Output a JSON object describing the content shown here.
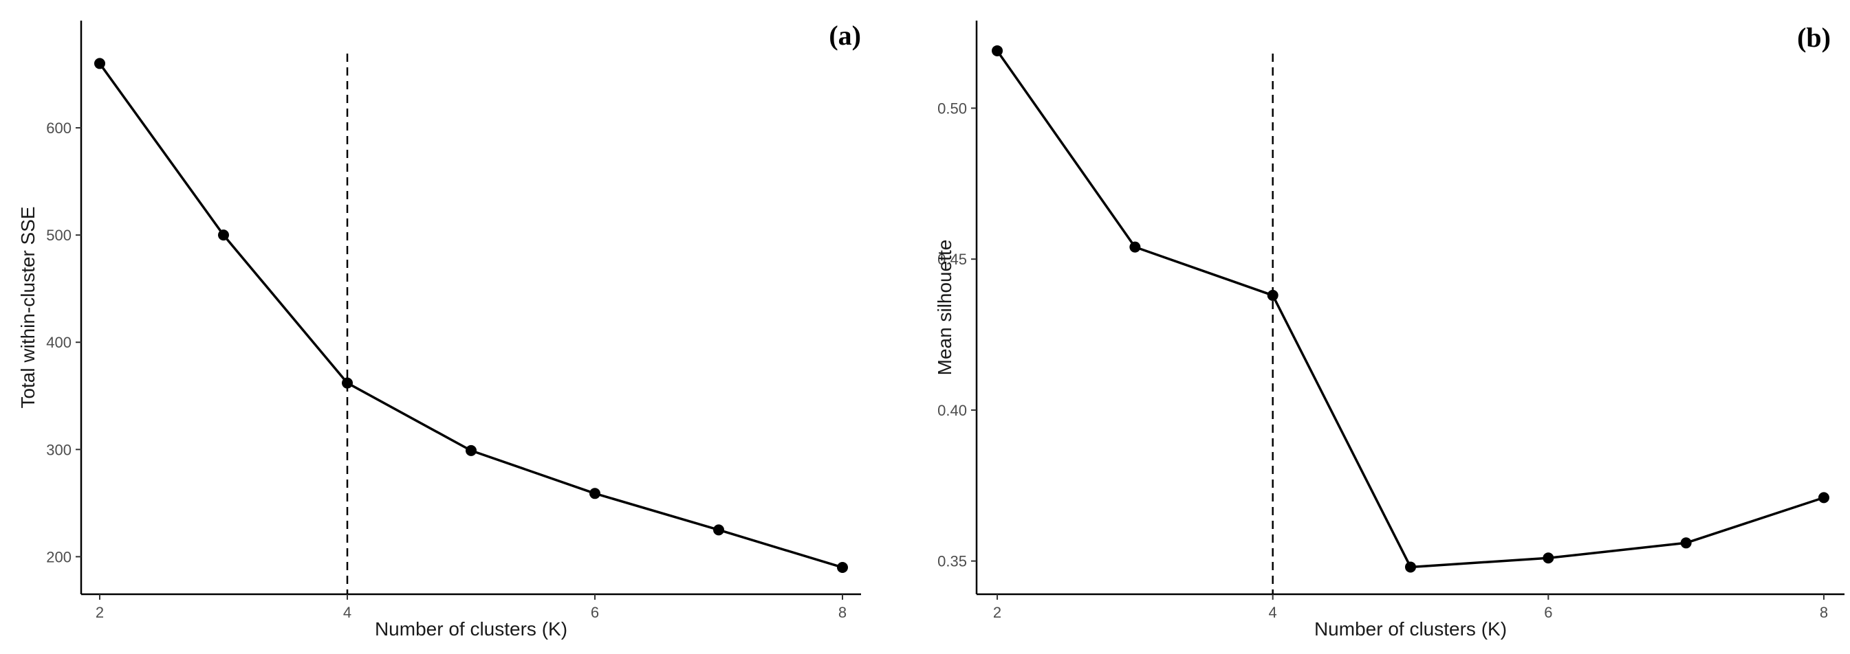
{
  "chart_data": [
    {
      "type": "line",
      "panel_label": "(a)",
      "xlabel": "Number of clusters (K)",
      "ylabel": "Total within-cluster SSE",
      "x": [
        2,
        3,
        4,
        5,
        6,
        7,
        8
      ],
      "series": [
        {
          "values": [
            660,
            500,
            362,
            299,
            259,
            225,
            190
          ]
        }
      ],
      "xticks": [
        "2",
        "4",
        "6",
        "8"
      ],
      "yticks": [
        "200",
        "300",
        "400",
        "500",
        "600"
      ],
      "xlim": [
        1.85,
        8.15
      ],
      "ylim": [
        165,
        700
      ],
      "vline_x": 4,
      "grid": false,
      "colors": {
        "line": "#000000",
        "point": "#000000",
        "axis": "#000000"
      }
    },
    {
      "type": "line",
      "panel_label": "(b)",
      "xlabel": "Number of clusters (K)",
      "ylabel": "Mean silhouette",
      "x": [
        2,
        3,
        4,
        5,
        6,
        7,
        8
      ],
      "series": [
        {
          "values": [
            0.519,
            0.454,
            0.438,
            0.348,
            0.351,
            0.356,
            0.371
          ]
        }
      ],
      "xticks": [
        "2",
        "4",
        "6",
        "8"
      ],
      "yticks": [
        "0.35",
        "0.40",
        "0.45",
        "0.50"
      ],
      "xlim": [
        1.85,
        8.15
      ],
      "ylim": [
        0.339,
        0.529
      ],
      "vline_x": 4,
      "grid": false,
      "colors": {
        "line": "#000000",
        "point": "#000000",
        "axis": "#000000"
      }
    }
  ]
}
